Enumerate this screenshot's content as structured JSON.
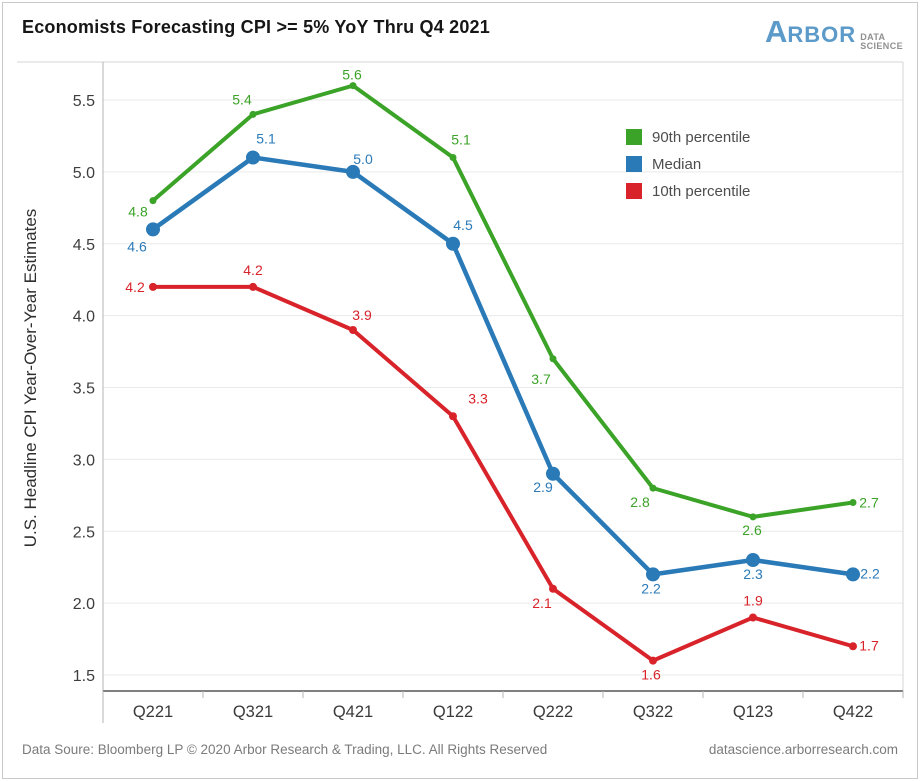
{
  "header": {
    "title": "Economists Forecasting CPI >= 5% YoY Thru Q4 2021",
    "logo": {
      "brand_initial": "A",
      "brand_rest": "RBOR",
      "sub_top": "DATA",
      "sub_bottom": "SCIENCE"
    }
  },
  "chart_data": {
    "type": "line",
    "title": "Economists Forecasting CPI >= 5% YoY Thru Q4 2021",
    "xlabel": "",
    "ylabel": "U.S. Headline CPI Year-Over-Year Estimates",
    "categories": [
      "Q221",
      "Q321",
      "Q421",
      "Q122",
      "Q222",
      "Q322",
      "Q123",
      "Q422"
    ],
    "yticks": [
      1.5,
      2.0,
      2.5,
      3.0,
      3.5,
      4.0,
      4.5,
      5.0,
      5.5
    ],
    "ylim": [
      1.3,
      5.78
    ],
    "grid": true,
    "legend_position": "top-right",
    "series": [
      {
        "name": "90th percentile",
        "color": "#3ba327",
        "marker_radius": 3.5,
        "line_width": 4,
        "values": [
          4.8,
          5.4,
          5.6,
          5.1,
          3.7,
          2.8,
          2.6,
          2.7
        ],
        "label_offsets": [
          [
            -15,
            16
          ],
          [
            -11,
            -10
          ],
          [
            -1,
            -6
          ],
          [
            8,
            -13
          ],
          [
            -12,
            25
          ],
          [
            -13,
            19
          ],
          [
            -1,
            18
          ],
          [
            16,
            5
          ]
        ]
      },
      {
        "name": "Median",
        "color": "#2a7ab8",
        "marker_radius": 7,
        "line_width": 4.5,
        "values": [
          4.6,
          5.1,
          5.0,
          4.5,
          2.9,
          2.2,
          2.3,
          2.2
        ],
        "label_offsets": [
          [
            -16,
            22
          ],
          [
            13,
            -14
          ],
          [
            10,
            -8
          ],
          [
            10,
            -14
          ],
          [
            -10,
            18
          ],
          [
            -2,
            19
          ],
          [
            0,
            19
          ],
          [
            17,
            4
          ]
        ]
      },
      {
        "name": "10th percentile",
        "color": "#d8232a",
        "marker_radius": 4,
        "line_width": 4,
        "values": [
          4.2,
          4.2,
          3.9,
          3.3,
          2.1,
          1.6,
          1.9,
          1.7
        ],
        "label_offsets": [
          [
            -18,
            5
          ],
          [
            0,
            -12
          ],
          [
            9,
            -10
          ],
          [
            25,
            -13
          ],
          [
            -11,
            19
          ],
          [
            -2,
            19
          ],
          [
            0,
            -12
          ],
          [
            16,
            4
          ]
        ]
      }
    ]
  },
  "footer": {
    "left": "Data Soure: Bloomberg LP © 2020 Arbor Research & Trading, LLC. All Rights Reserved",
    "right": "datascience.arborresearch.com"
  }
}
